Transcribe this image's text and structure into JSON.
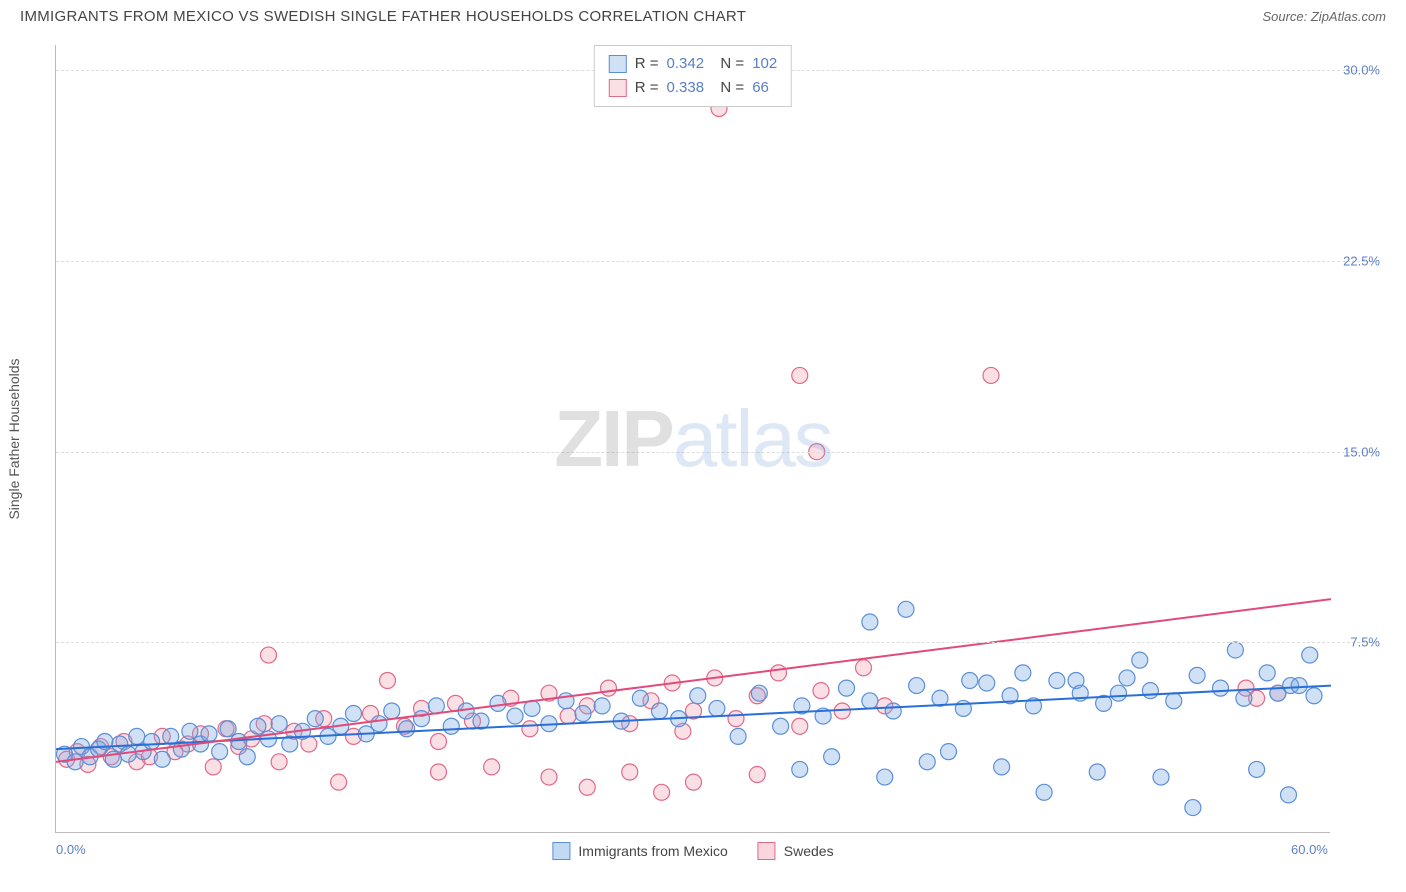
{
  "title": "IMMIGRANTS FROM MEXICO VS SWEDISH SINGLE FATHER HOUSEHOLDS CORRELATION CHART",
  "source_label": "Source: ZipAtlas.com",
  "watermark": {
    "part1": "ZIP",
    "part2": "atlas"
  },
  "chart": {
    "type": "scatter",
    "xlim": [
      0,
      60
    ],
    "ylim": [
      0,
      31
    ],
    "background_color": "#ffffff",
    "grid_color": "#dddddd",
    "axis_color": "#bbbbbb",
    "tick_color": "#5b7fc7",
    "xticks": [
      {
        "value": 0,
        "label": "0.0%"
      },
      {
        "value": 60,
        "label": "60.0%"
      }
    ],
    "yticks": [
      {
        "value": 7.5,
        "label": "7.5%"
      },
      {
        "value": 15.0,
        "label": "15.0%"
      },
      {
        "value": 22.5,
        "label": "22.5%"
      },
      {
        "value": 30.0,
        "label": "30.0%"
      }
    ],
    "ylabel": "Single Father Households",
    "marker_radius": 8,
    "marker_stroke_width": 1.2,
    "line_width": 2,
    "series": [
      {
        "name": "Immigrants from Mexico",
        "fill": "rgba(120,170,230,0.35)",
        "stroke": "#5b8fd6",
        "line_color": "#2a6fd6",
        "regression": {
          "x1": 0,
          "y1": 3.3,
          "x2": 60,
          "y2": 5.8
        },
        "stats": {
          "R": "0.342",
          "N": "102"
        },
        "points": [
          [
            0.4,
            3.1
          ],
          [
            0.9,
            2.8
          ],
          [
            1.2,
            3.4
          ],
          [
            1.6,
            3.0
          ],
          [
            2.0,
            3.3
          ],
          [
            2.3,
            3.6
          ],
          [
            2.7,
            2.9
          ],
          [
            3.0,
            3.5
          ],
          [
            3.4,
            3.1
          ],
          [
            3.8,
            3.8
          ],
          [
            4.1,
            3.2
          ],
          [
            4.5,
            3.6
          ],
          [
            5.0,
            2.9
          ],
          [
            5.4,
            3.8
          ],
          [
            5.9,
            3.3
          ],
          [
            6.3,
            4.0
          ],
          [
            6.8,
            3.5
          ],
          [
            7.2,
            3.9
          ],
          [
            7.7,
            3.2
          ],
          [
            8.1,
            4.1
          ],
          [
            8.6,
            3.6
          ],
          [
            9.0,
            3.0
          ],
          [
            9.5,
            4.2
          ],
          [
            10.0,
            3.7
          ],
          [
            10.5,
            4.3
          ],
          [
            11.0,
            3.5
          ],
          [
            11.6,
            4.0
          ],
          [
            12.2,
            4.5
          ],
          [
            12.8,
            3.8
          ],
          [
            13.4,
            4.2
          ],
          [
            14.0,
            4.7
          ],
          [
            14.6,
            3.9
          ],
          [
            15.2,
            4.3
          ],
          [
            15.8,
            4.8
          ],
          [
            16.5,
            4.1
          ],
          [
            17.2,
            4.5
          ],
          [
            17.9,
            5.0
          ],
          [
            18.6,
            4.2
          ],
          [
            19.3,
            4.8
          ],
          [
            20.0,
            4.4
          ],
          [
            20.8,
            5.1
          ],
          [
            21.6,
            4.6
          ],
          [
            22.4,
            4.9
          ],
          [
            23.2,
            4.3
          ],
          [
            24.0,
            5.2
          ],
          [
            24.8,
            4.7
          ],
          [
            25.7,
            5.0
          ],
          [
            26.6,
            4.4
          ],
          [
            27.5,
            5.3
          ],
          [
            28.4,
            4.8
          ],
          [
            29.3,
            4.5
          ],
          [
            30.2,
            5.4
          ],
          [
            31.1,
            4.9
          ],
          [
            32.1,
            3.8
          ],
          [
            33.1,
            5.5
          ],
          [
            34.1,
            4.2
          ],
          [
            35.0,
            2.5
          ],
          [
            35.1,
            5.0
          ],
          [
            36.1,
            4.6
          ],
          [
            36.5,
            3.0
          ],
          [
            37.2,
            5.7
          ],
          [
            38.3,
            8.3
          ],
          [
            38.3,
            5.2
          ],
          [
            39.0,
            2.2
          ],
          [
            39.4,
            4.8
          ],
          [
            40.0,
            8.8
          ],
          [
            40.5,
            5.8
          ],
          [
            41.0,
            2.8
          ],
          [
            41.6,
            5.3
          ],
          [
            42.0,
            3.2
          ],
          [
            42.7,
            4.9
          ],
          [
            43.0,
            6.0
          ],
          [
            43.8,
            5.9
          ],
          [
            44.5,
            2.6
          ],
          [
            44.9,
            5.4
          ],
          [
            45.5,
            6.3
          ],
          [
            46.0,
            5.0
          ],
          [
            46.5,
            1.6
          ],
          [
            47.1,
            6.0
          ],
          [
            48.0,
            6.0
          ],
          [
            48.2,
            5.5
          ],
          [
            49.0,
            2.4
          ],
          [
            49.3,
            5.1
          ],
          [
            50.0,
            5.5
          ],
          [
            50.4,
            6.1
          ],
          [
            51.0,
            6.8
          ],
          [
            51.5,
            5.6
          ],
          [
            52.0,
            2.2
          ],
          [
            52.6,
            5.2
          ],
          [
            53.5,
            1.0
          ],
          [
            53.7,
            6.2
          ],
          [
            54.8,
            5.7
          ],
          [
            55.5,
            7.2
          ],
          [
            55.9,
            5.3
          ],
          [
            56.5,
            2.5
          ],
          [
            57.0,
            6.3
          ],
          [
            57.5,
            5.5
          ],
          [
            58.0,
            1.5
          ],
          [
            58.1,
            5.8
          ],
          [
            58.5,
            5.8
          ],
          [
            59.0,
            7.0
          ],
          [
            59.2,
            5.4
          ]
        ]
      },
      {
        "name": "Swedes",
        "fill": "rgba(240,150,170,0.30)",
        "stroke": "#e06a8a",
        "line_color": "#e24a7a",
        "regression": {
          "x1": 0,
          "y1": 2.8,
          "x2": 60,
          "y2": 9.2
        },
        "stats": {
          "R": "0.338",
          "N": "66"
        },
        "points": [
          [
            0.5,
            2.9
          ],
          [
            1.0,
            3.2
          ],
          [
            1.5,
            2.7
          ],
          [
            2.1,
            3.4
          ],
          [
            2.6,
            3.0
          ],
          [
            3.2,
            3.6
          ],
          [
            3.8,
            2.8
          ],
          [
            4.4,
            3.0
          ],
          [
            5.0,
            3.8
          ],
          [
            5.6,
            3.2
          ],
          [
            6.2,
            3.5
          ],
          [
            6.8,
            3.9
          ],
          [
            7.4,
            2.6
          ],
          [
            8.0,
            4.1
          ],
          [
            8.6,
            3.4
          ],
          [
            9.2,
            3.7
          ],
          [
            9.8,
            4.3
          ],
          [
            10.0,
            7.0
          ],
          [
            10.5,
            2.8
          ],
          [
            11.2,
            4.0
          ],
          [
            11.9,
            3.5
          ],
          [
            12.6,
            4.5
          ],
          [
            13.3,
            2.0
          ],
          [
            14.0,
            3.8
          ],
          [
            14.8,
            4.7
          ],
          [
            15.6,
            6.0
          ],
          [
            16.4,
            4.2
          ],
          [
            17.2,
            4.9
          ],
          [
            18.0,
            2.4
          ],
          [
            18.0,
            3.6
          ],
          [
            18.8,
            5.1
          ],
          [
            19.6,
            4.4
          ],
          [
            20.5,
            2.6
          ],
          [
            21.4,
            5.3
          ],
          [
            22.3,
            4.1
          ],
          [
            23.2,
            2.2
          ],
          [
            23.2,
            5.5
          ],
          [
            24.1,
            4.6
          ],
          [
            25.0,
            1.8
          ],
          [
            25.0,
            5.0
          ],
          [
            26.0,
            5.7
          ],
          [
            27.0,
            4.3
          ],
          [
            27.0,
            2.4
          ],
          [
            28.0,
            5.2
          ],
          [
            28.5,
            1.6
          ],
          [
            29.0,
            5.9
          ],
          [
            29.5,
            4.0
          ],
          [
            30.0,
            2.0
          ],
          [
            30.0,
            4.8
          ],
          [
            31.0,
            6.1
          ],
          [
            31.2,
            28.5
          ],
          [
            32.0,
            4.5
          ],
          [
            33.0,
            2.3
          ],
          [
            33.0,
            5.4
          ],
          [
            34.0,
            6.3
          ],
          [
            35.0,
            18.0
          ],
          [
            35.0,
            4.2
          ],
          [
            35.8,
            15.0
          ],
          [
            36.0,
            5.6
          ],
          [
            37.0,
            4.8
          ],
          [
            38.0,
            6.5
          ],
          [
            39.0,
            5.0
          ],
          [
            44.0,
            18.0
          ],
          [
            56.0,
            5.7
          ],
          [
            56.5,
            5.3
          ],
          [
            57.5,
            5.5
          ]
        ]
      }
    ],
    "legend_bottom": [
      {
        "label": "Immigrants from Mexico",
        "fill": "rgba(120,170,230,0.45)",
        "stroke": "#5b8fd6"
      },
      {
        "label": "Swedes",
        "fill": "rgba(240,150,170,0.40)",
        "stroke": "#e06a8a"
      }
    ]
  }
}
